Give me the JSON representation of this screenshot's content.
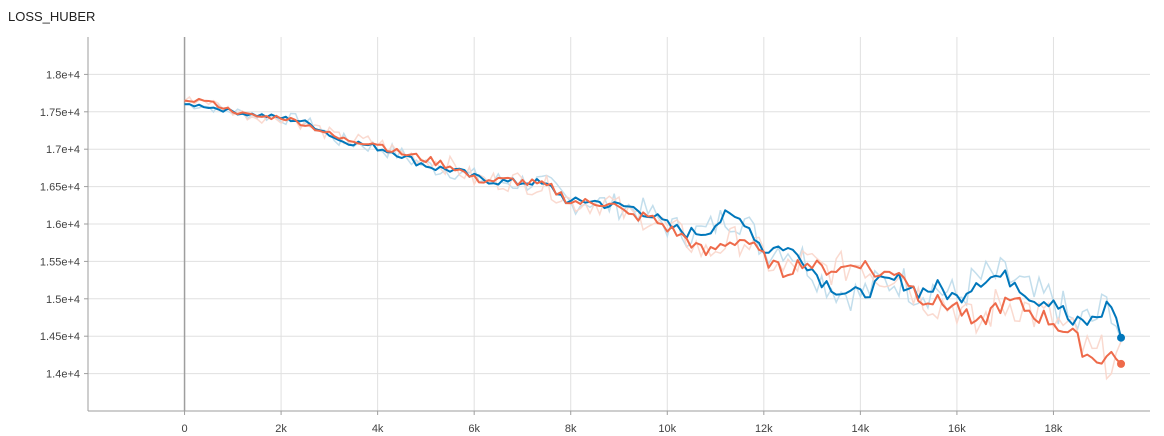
{
  "chart_data": {
    "type": "line",
    "title": "LOSS_HUBER",
    "xlabel": "",
    "ylabel": "",
    "xlim": [
      -2000,
      20000
    ],
    "ylim": [
      13500,
      18500
    ],
    "grid": true,
    "x_ticks": [
      0,
      2000,
      4000,
      6000,
      8000,
      10000,
      12000,
      14000,
      16000,
      18000
    ],
    "x_tick_labels": [
      "0",
      "2k",
      "4k",
      "6k",
      "8k",
      "10k",
      "12k",
      "14k",
      "16k",
      "18k"
    ],
    "y_ticks": [
      14000,
      14500,
      15000,
      15500,
      16000,
      16500,
      17000,
      17500,
      18000
    ],
    "y_tick_labels": [
      "1.4e+4",
      "1.45e+4",
      "1.5e+4",
      "1.55e+4",
      "1.6e+4",
      "1.65e+4",
      "1.7e+4",
      "1.75e+4",
      "1.8e+4"
    ],
    "series": [
      {
        "color": "#0077bb",
        "raw_color": "#bcdaea",
        "points": [
          [
            0,
            17600
          ],
          [
            400,
            17580
          ],
          [
            800,
            17530
          ],
          [
            1200,
            17480
          ],
          [
            1600,
            17450
          ],
          [
            2000,
            17420
          ],
          [
            2400,
            17380
          ],
          [
            2800,
            17280
          ],
          [
            3200,
            17120
          ],
          [
            3600,
            17080
          ],
          [
            4000,
            17020
          ],
          [
            4400,
            16950
          ],
          [
            4800,
            16830
          ],
          [
            5200,
            16750
          ],
          [
            5600,
            16720
          ],
          [
            6000,
            16620
          ],
          [
            6400,
            16580
          ],
          [
            6800,
            16550
          ],
          [
            7200,
            16570
          ],
          [
            7600,
            16480
          ],
          [
            8000,
            16280
          ],
          [
            8400,
            16320
          ],
          [
            8800,
            16250
          ],
          [
            9200,
            16230
          ],
          [
            9600,
            16150
          ],
          [
            10000,
            15980
          ],
          [
            10400,
            15880
          ],
          [
            10800,
            15900
          ],
          [
            11200,
            16100
          ],
          [
            11600,
            16050
          ],
          [
            12000,
            15650
          ],
          [
            12400,
            15700
          ],
          [
            12800,
            15550
          ],
          [
            13200,
            15250
          ],
          [
            13600,
            15100
          ],
          [
            14000,
            15050
          ],
          [
            14400,
            15200
          ],
          [
            14800,
            15250
          ],
          [
            15200,
            15100
          ],
          [
            15600,
            15150
          ],
          [
            16000,
            15000
          ],
          [
            16400,
            15250
          ],
          [
            16800,
            15300
          ],
          [
            17200,
            15250
          ],
          [
            17600,
            15000
          ],
          [
            18000,
            15000
          ],
          [
            18400,
            14650
          ],
          [
            18800,
            14700
          ],
          [
            19200,
            14950
          ],
          [
            19400,
            14480
          ]
        ]
      },
      {
        "color": "#ee6a4a",
        "raw_color": "#f9d6cb",
        "points": [
          [
            0,
            17650
          ],
          [
            400,
            17660
          ],
          [
            800,
            17560
          ],
          [
            1200,
            17470
          ],
          [
            1600,
            17430
          ],
          [
            2000,
            17430
          ],
          [
            2400,
            17360
          ],
          [
            2800,
            17260
          ],
          [
            3200,
            17140
          ],
          [
            3600,
            17110
          ],
          [
            4000,
            17080
          ],
          [
            4400,
            16960
          ],
          [
            4800,
            16900
          ],
          [
            5200,
            16830
          ],
          [
            5600,
            16760
          ],
          [
            6000,
            16600
          ],
          [
            6400,
            16580
          ],
          [
            6800,
            16580
          ],
          [
            7200,
            16540
          ],
          [
            7600,
            16480
          ],
          [
            8000,
            16300
          ],
          [
            8400,
            16280
          ],
          [
            8800,
            16300
          ],
          [
            9200,
            16100
          ],
          [
            9600,
            16100
          ],
          [
            10000,
            15950
          ],
          [
            10400,
            15800
          ],
          [
            10800,
            15600
          ],
          [
            11200,
            15750
          ],
          [
            11600,
            15800
          ],
          [
            12000,
            15550
          ],
          [
            12400,
            15350
          ],
          [
            12800,
            15500
          ],
          [
            13200,
            15400
          ],
          [
            13600,
            15400
          ],
          [
            14000,
            15500
          ],
          [
            14400,
            15300
          ],
          [
            14800,
            15400
          ],
          [
            15200,
            15050
          ],
          [
            15600,
            14950
          ],
          [
            16000,
            14900
          ],
          [
            16400,
            14600
          ],
          [
            16800,
            14900
          ],
          [
            17200,
            14950
          ],
          [
            17600,
            14800
          ],
          [
            18000,
            14700
          ],
          [
            18400,
            14500
          ],
          [
            18800,
            14200
          ],
          [
            19200,
            14250
          ],
          [
            19400,
            14130
          ]
        ]
      }
    ]
  }
}
